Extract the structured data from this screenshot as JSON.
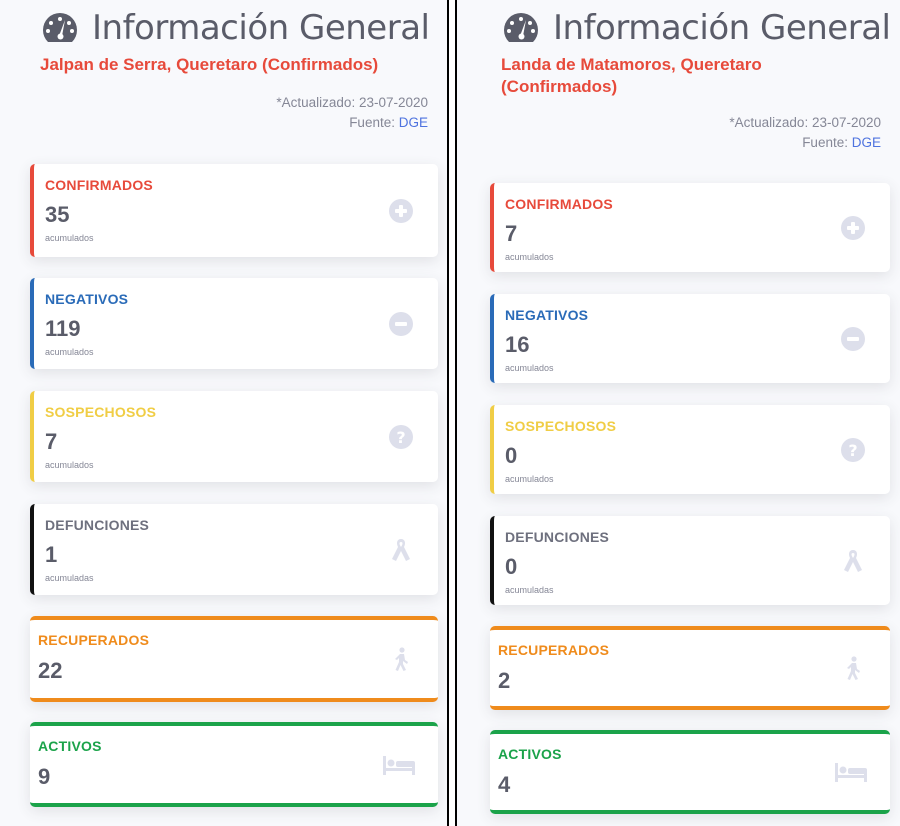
{
  "colors": {
    "red": "#e74a3b",
    "blue": "#2a6bb8",
    "yellow": "#f0cd45",
    "black": "#111111",
    "orange": "#ef8b1c",
    "green": "#1ba34a",
    "icon_gray": "#dddfeb"
  },
  "panels": [
    {
      "title": "Información General",
      "subtitle": "Jalpan de Serra, Queretaro (Confirmados)",
      "updated": "*Actualizado: 23-07-2020",
      "source_label": "Fuente:",
      "source_link": "DGE",
      "cards": [
        {
          "label": "CONFIRMADOS",
          "value": "35",
          "sub": "acumulados",
          "icon": "plus-circle-icon"
        },
        {
          "label": "NEGATIVOS",
          "value": "119",
          "sub": "acumulados",
          "icon": "minus-circle-icon"
        },
        {
          "label": "SOSPECHOSOS",
          "value": "7",
          "sub": "acumulados",
          "icon": "question-circle-icon"
        },
        {
          "label": "DEFUNCIONES",
          "value": "1",
          "sub": "acumuladas",
          "icon": "ribbon-icon"
        },
        {
          "label": "RECUPERADOS",
          "value": "22",
          "icon": "walking-icon"
        },
        {
          "label": "ACTIVOS",
          "value": "9",
          "icon": "bed-icon"
        }
      ]
    },
    {
      "title": "Información General",
      "subtitle": "Landa de Matamoros, Queretaro (Confirmados)",
      "updated": "*Actualizado: 23-07-2020",
      "source_label": "Fuente:",
      "source_link": "DGE",
      "cards": [
        {
          "label": "CONFIRMADOS",
          "value": "7",
          "sub": "acumulados",
          "icon": "plus-circle-icon"
        },
        {
          "label": "NEGATIVOS",
          "value": "16",
          "sub": "acumulados",
          "icon": "minus-circle-icon"
        },
        {
          "label": "SOSPECHOSOS",
          "value": "0",
          "sub": "acumulados",
          "icon": "question-circle-icon"
        },
        {
          "label": "DEFUNCIONES",
          "value": "0",
          "sub": "acumuladas",
          "icon": "ribbon-icon"
        },
        {
          "label": "RECUPERADOS",
          "value": "2",
          "icon": "walking-icon"
        },
        {
          "label": "ACTIVOS",
          "value": "4",
          "icon": "bed-icon"
        }
      ]
    }
  ]
}
